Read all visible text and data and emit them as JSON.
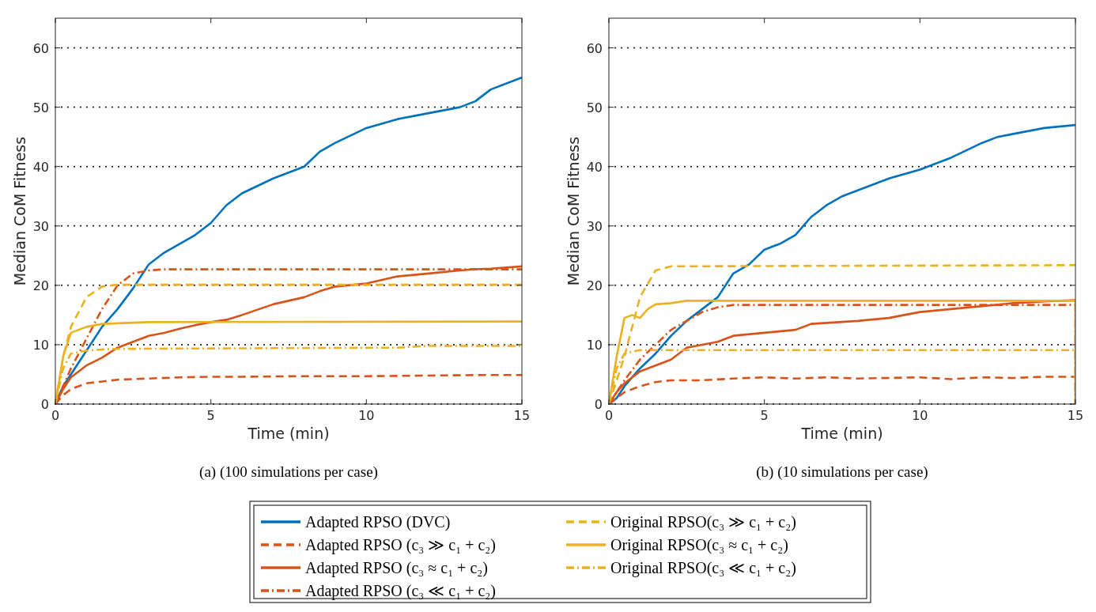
{
  "chart_data": [
    {
      "type": "line",
      "xlabel": "Time (min)",
      "ylabel": "Median CoM Fitness",
      "xlim": [
        0,
        15
      ],
      "xticks": [
        0,
        5,
        10,
        15
      ],
      "ylim": [
        0,
        65
      ],
      "yticks": [
        0,
        10,
        20,
        30,
        40,
        50,
        60
      ],
      "grid": "y",
      "legend": "bottom",
      "annotations": [
        "(a) (100 simulations per case)"
      ],
      "series": [
        {
          "name": "Adapted RPSO (DVC)",
          "color": "#0072bd",
          "line_style": "solid",
          "x": [
            0,
            0.25,
            0.5,
            1,
            1.5,
            2,
            2.5,
            3,
            3.5,
            4,
            4.5,
            5,
            5.5,
            6,
            7,
            8,
            8.5,
            9,
            10,
            11,
            12,
            13,
            13.5,
            14,
            15
          ],
          "values": [
            0,
            3,
            5,
            9,
            13,
            16,
            19.5,
            23.5,
            25.5,
            27,
            28.5,
            30.5,
            33.5,
            35.5,
            38,
            40,
            42.5,
            44,
            46.5,
            48,
            49,
            50,
            51,
            53,
            55
          ]
        },
        {
          "name": "Adapted RPSO (c₃ ≫ c₁ + c₂)",
          "color": "#d95319",
          "line_style": "dashed",
          "x": [
            0,
            0.25,
            0.5,
            1,
            1.5,
            2,
            3,
            4,
            5,
            6,
            8,
            10,
            12,
            14,
            15
          ],
          "values": [
            0,
            1.5,
            2.5,
            3.5,
            3.8,
            4.1,
            4.3,
            4.5,
            4.6,
            4.6,
            4.7,
            4.7,
            4.8,
            4.9,
            4.9
          ]
        },
        {
          "name": "Adapted RPSO (c₃ ≈ c₁ + c₂)",
          "color": "#d95319",
          "line_style": "solid",
          "x": [
            0,
            0.25,
            0.5,
            1,
            1.5,
            2,
            2.5,
            3,
            3.5,
            4,
            4.5,
            5,
            5.5,
            6,
            7,
            8,
            8.5,
            9,
            10,
            11,
            12,
            13,
            13.5,
            14,
            15
          ],
          "values": [
            0,
            2.5,
            4.5,
            6.5,
            7.8,
            9.5,
            10.5,
            11.5,
            12,
            12.7,
            13.3,
            13.8,
            14.2,
            15,
            16.8,
            18,
            19,
            19.8,
            20.3,
            21.5,
            22,
            22.5,
            22.7,
            22.8,
            23.2
          ]
        },
        {
          "name": "Adapted RPSO (c₃ ≪ c₁ + c₂)",
          "color": "#d95319",
          "line_style": "dashdot",
          "x": [
            0,
            0.25,
            0.5,
            1,
            1.5,
            2,
            2.5,
            3,
            3.5,
            15
          ],
          "values": [
            0,
            3,
            6,
            11,
            16,
            20,
            22,
            22.5,
            22.7,
            22.7
          ]
        },
        {
          "name": "Original RPSO(c₃ ≫ c₁ + c₂)",
          "color": "#edb120",
          "line_style": "dashed",
          "x": [
            0,
            0.25,
            0.5,
            1,
            1.5,
            2,
            15
          ],
          "values": [
            0,
            8,
            13,
            18,
            19.8,
            20.1,
            20.1
          ]
        },
        {
          "name": "Original RPSO(c₃ ≈ c₁ + c₂)",
          "color": "#edb120",
          "line_style": "solid",
          "x": [
            0,
            0.25,
            0.5,
            1,
            1.5,
            2,
            3,
            15
          ],
          "values": [
            0,
            8,
            12,
            13,
            13.5,
            13.6,
            13.8,
            13.9
          ]
        },
        {
          "name": "Original RPSO(c₃ ≪ c₁ + c₂)",
          "color": "#edb120",
          "line_style": "dashdot",
          "x": [
            0,
            0.25,
            0.5,
            1,
            1.5,
            2,
            11,
            12,
            15
          ],
          "values": [
            0,
            6,
            8.5,
            9,
            9.2,
            9.3,
            9.5,
            9.8,
            9.8
          ]
        }
      ]
    },
    {
      "type": "line",
      "xlabel": "Time (min)",
      "ylabel": "Median CoM Fitness",
      "xlim": [
        0,
        15
      ],
      "xticks": [
        0,
        5,
        10,
        15
      ],
      "ylim": [
        0,
        65
      ],
      "yticks": [
        0,
        10,
        20,
        30,
        40,
        50,
        60
      ],
      "grid": "y",
      "legend": false,
      "annotations": [
        "(b) (10 simulations per case)"
      ],
      "series": [
        {
          "color": "#0072bd",
          "line_style": "solid",
          "x": [
            0,
            0.25,
            0.5,
            1,
            1.5,
            2,
            2.5,
            3,
            3.5,
            4,
            4.5,
            5,
            5.5,
            6,
            6.5,
            7,
            7.5,
            8,
            8.5,
            9,
            10,
            10.5,
            11,
            12,
            12.5,
            13,
            14,
            15
          ],
          "values": [
            0,
            1,
            3,
            6,
            8.5,
            11.5,
            14,
            16,
            18,
            22,
            23.5,
            26,
            27,
            28.5,
            31.5,
            33.5,
            35,
            36,
            37,
            38,
            39.5,
            40.5,
            41.5,
            44,
            45,
            45.5,
            46.5,
            47
          ]
        },
        {
          "color": "#d95319",
          "line_style": "dashed",
          "x": [
            0,
            0.25,
            0.5,
            1,
            1.5,
            2,
            3,
            4,
            5,
            6,
            7,
            8,
            9,
            10,
            11,
            12,
            13,
            14,
            15
          ],
          "values": [
            0,
            1,
            2,
            3,
            3.7,
            4,
            4,
            4.3,
            4.5,
            4.3,
            4.5,
            4.3,
            4.4,
            4.5,
            4.2,
            4.5,
            4.4,
            4.6,
            4.6
          ]
        },
        {
          "color": "#d95319",
          "line_style": "solid",
          "x": [
            0,
            0.25,
            0.5,
            1,
            1.5,
            2,
            2.5,
            3,
            3.5,
            4,
            5,
            6,
            6.5,
            8,
            9,
            10,
            11,
            12,
            13,
            14,
            15
          ],
          "values": [
            0,
            2,
            3.5,
            5.5,
            6.5,
            7.5,
            9.5,
            10,
            10.5,
            11.5,
            12,
            12.5,
            13.5,
            14,
            14.5,
            15.5,
            16,
            16.5,
            17,
            17.3,
            17.5
          ]
        },
        {
          "color": "#d95319",
          "line_style": "dashdot",
          "x": [
            0,
            0.5,
            1,
            1.5,
            2,
            2.5,
            3,
            3.5,
            4,
            15,
            15
          ],
          "values": [
            0,
            4,
            7.5,
            10,
            12.5,
            14,
            15.5,
            16.3,
            16.7,
            16.7,
            0
          ]
        },
        {
          "color": "#edb120",
          "line_style": "dashed",
          "x": [
            0,
            0.5,
            0.8,
            1,
            1.5,
            2,
            15
          ],
          "values": [
            0,
            8,
            14,
            18,
            22.5,
            23.2,
            23.4
          ]
        },
        {
          "color": "#edb120",
          "line_style": "solid",
          "x": [
            0,
            0.25,
            0.5,
            0.75,
            1,
            1.25,
            1.5,
            2,
            2.5,
            15,
            15
          ],
          "values": [
            0,
            8,
            14.5,
            15,
            14.5,
            16,
            16.8,
            17,
            17.4,
            17.4,
            0
          ]
        },
        {
          "color": "#edb120",
          "line_style": "dashdot",
          "x": [
            0,
            0.25,
            0.5,
            1,
            15,
            15
          ],
          "values": [
            0,
            6,
            8.5,
            9.1,
            9.1,
            0
          ]
        }
      ]
    }
  ]
}
